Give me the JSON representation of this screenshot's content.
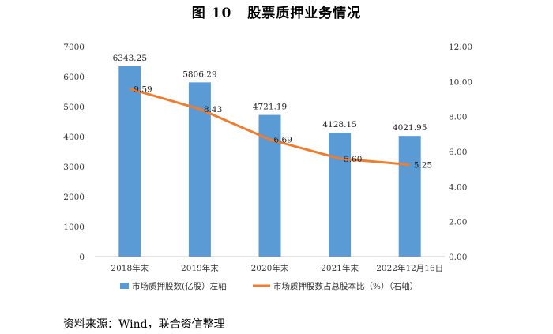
{
  "figure": {
    "number": "图 10",
    "title": "股票质押业务情况"
  },
  "source": "资料来源：Wind，联合资信整理",
  "colors": {
    "bar": "#5b9bd5",
    "line": "#ed7d31",
    "axis": "#c8c8c8"
  },
  "chart_data": {
    "type": "bar",
    "categories": [
      "2018年末",
      "2019年末",
      "2020年末",
      "2021年末",
      "2022年12月16日"
    ],
    "series": [
      {
        "name": "市场质押股数(亿股）左轴",
        "type": "bar",
        "axis": "left",
        "values": [
          6343.25,
          5806.29,
          4721.19,
          4128.15,
          4021.95
        ]
      },
      {
        "name": "市场质押股数占总股本比（%）（右轴）",
        "type": "line",
        "axis": "right",
        "values": [
          9.59,
          8.43,
          6.69,
          5.6,
          5.25
        ]
      }
    ],
    "data_labels": {
      "bar": [
        "6343.25",
        "5806.29",
        "4721.19",
        "4128.15",
        "4021.95"
      ],
      "line": [
        "9.59",
        "8.43",
        "6.69",
        "5.60",
        "5.25"
      ]
    },
    "left_axis": {
      "min": 0,
      "max": 7000,
      "step": 1000,
      "ticks": [
        "0",
        "1000",
        "2000",
        "3000",
        "4000",
        "5000",
        "6000",
        "7000"
      ]
    },
    "right_axis": {
      "min": 0,
      "max": 12,
      "step": 2,
      "ticks": [
        "0.00",
        "2.00",
        "4.00",
        "6.00",
        "8.00",
        "10.00",
        "12.00"
      ]
    },
    "grid": false,
    "legend_position": "bottom"
  }
}
